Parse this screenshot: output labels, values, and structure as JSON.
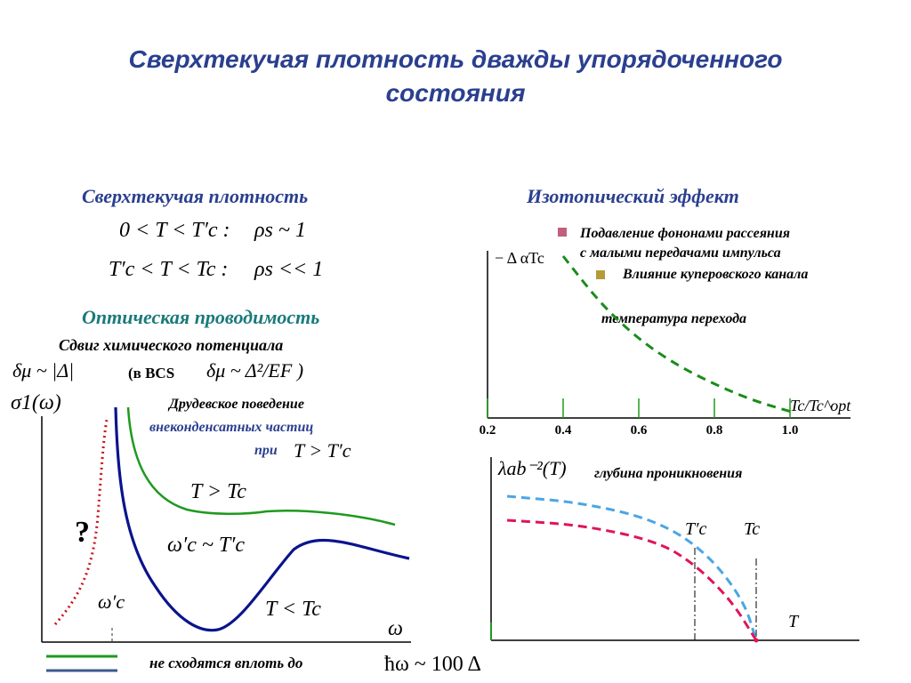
{
  "slide": {
    "title_line1": "Сверхтекучая плотность дважды упорядоченного",
    "title_line2": "состояния"
  },
  "left": {
    "heading_superfluid": "Сверхтекучая плотность",
    "eq1_range": "0 < T < T′c :",
    "eq1_value": "ρs ~ 1",
    "eq2_range": "T′c < T < Tc :",
    "eq2_value": "ρs << 1",
    "heading_optical": "Оптическая проводимость",
    "chem_shift": "Сдвиг химического потенциала",
    "dmu_left": "δμ ~ |Δ|",
    "bcs_label": "(в BCS",
    "dmu_bcs": "δμ ~ Δ²/EF )",
    "drude_line1": "Друдевское поведение",
    "drude_line2": "внеконденсатных частиц",
    "drude_line3": "при",
    "drude_cond": "T > T′c",
    "y_label": "σ1(ω)",
    "curve_upper_label": "T > Tc",
    "curve_mid_label": "ω′c ~ T′c",
    "curve_lower_label": "T < Tc",
    "question": "?",
    "omega_c_label": "ω′c",
    "x_label": "ω",
    "footer": "не сходятся вплоть до",
    "footer_math": "ħω ~ 100 Δ"
  },
  "right_top": {
    "heading": "Изотопический эффект",
    "legend1_line1": "Подавление фононами рассеяния",
    "legend1_line2": "с малыми передачами импульса",
    "legend2": "Влияние куперовского канала",
    "transition_label": "температура перехода",
    "y_label": "− Δ αTc",
    "x_label": "Tc/Tc^opt"
  },
  "right_bottom": {
    "y_label": "λab⁻²(T)",
    "title": "глубина проникновения",
    "tc_prime_label": "T′c",
    "tc_label": "Tc",
    "x_label": "T"
  },
  "colors": {
    "title_blue": "#2a3f8f",
    "teal": "#1a7a7a",
    "green_curve": "#1e9a1e",
    "navy_curve": "#0a148c",
    "red_dotted": "#c8141e",
    "dash_green": "#1a8c1a",
    "dash_blue": "#4aa6e6",
    "dash_pink": "#e0145a",
    "legend_pink_square": "#c0607a",
    "legend_olive_square": "#b49a3a"
  },
  "chart_data": [
    {
      "type": "line",
      "x_ticks": [
        "0.2",
        "0.4",
        "0.6",
        "0.8",
        "1.0"
      ],
      "x": [
        0.4,
        0.5,
        0.6,
        0.7,
        0.8,
        0.9,
        1.0
      ],
      "series": [
        {
          "values": [
            1.0,
            0.7,
            0.48,
            0.32,
            0.2,
            0.1,
            0.03
          ]
        }
      ],
      "grid": false
    },
    {
      "type": "line",
      "series": [
        {
          "x": [
            0.0,
            0.3,
            0.6,
            0.8,
            0.95,
            1.0
          ],
          "values": [
            0.9,
            0.86,
            0.75,
            0.55,
            0.25,
            0.0
          ]
        },
        {
          "x": [
            0.0,
            0.3,
            0.6,
            0.75,
            0.9,
            1.0
          ],
          "values": [
            0.75,
            0.72,
            0.62,
            0.48,
            0.25,
            0.0
          ]
        }
      ]
    }
  ]
}
